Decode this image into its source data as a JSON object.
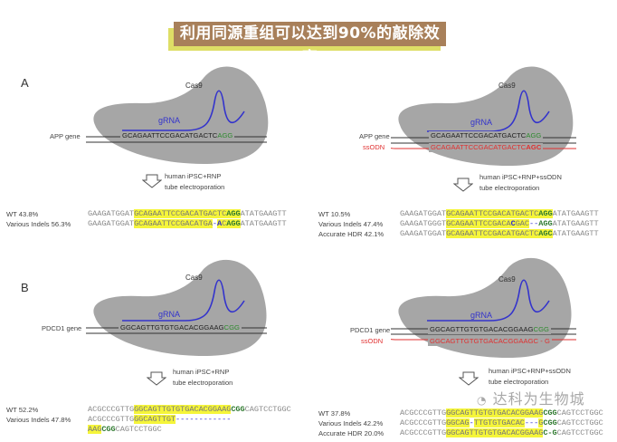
{
  "title": "利用同源重组可以达到90%的敲除效率",
  "watermark": "达科为生物城",
  "colors": {
    "title_bg": "#a8805a",
    "title_shadow": "#dede66",
    "cas9": "#a6a6a6",
    "grna": "#3333cc",
    "pam": "#2f8a2f",
    "ssodn": "#e03030",
    "highlight": "#f5f53a"
  },
  "panels": {
    "A_left": {
      "letter": "A",
      "cas9": "Cas9",
      "grna": "gRNA",
      "gene_label": "APP gene",
      "gene_seq": "GCAGAATTCCGACATGACTC",
      "gene_pam": "AGG",
      "condition": [
        "human iPSC+RNP",
        "tube electroporation"
      ],
      "rows": [
        {
          "label": "WT 43.8%",
          "segments": [
            {
              "t": "GAAGATGGAT",
              "s": "plain"
            },
            {
              "t": "GCAGAATTCCGACATGACTC",
              "s": "hl"
            },
            {
              "t": "AGG",
              "s": "pamhl"
            },
            {
              "t": "ATATGAAGTT",
              "s": "plain"
            }
          ]
        },
        {
          "label": "Various Indels 56.3%",
          "segments": [
            {
              "t": "GAAGATGGAT",
              "s": "plain"
            },
            {
              "t": "GCAGAATTCCGACATGA",
              "s": "hl"
            },
            {
              "t": "-",
              "s": "delw"
            },
            {
              "t": "A",
              "s": "inshl"
            },
            {
              "t": "C",
              "s": "hl"
            },
            {
              "t": "AGG",
              "s": "pamhl"
            },
            {
              "t": "ATATGAAGTT",
              "s": "plain"
            }
          ]
        }
      ]
    },
    "A_right": {
      "cas9": "Cas9",
      "grna": "gRNA",
      "gene_label": "APP gene",
      "ssodn_label": "ssODN",
      "gene_seq": "GCAGAATTCCGACATGACTC",
      "gene_pam": "AGG",
      "ssodn_seq": "GCAGAATTCCGACATGACTC",
      "ssodn_pam": "AGC",
      "condition": [
        "human iPSC+RNP+ssODN",
        "tube electroporation"
      ],
      "rows": [
        {
          "label": "WT 10.5%",
          "segments": [
            {
              "t": "GAAGATGGAT",
              "s": "plain"
            },
            {
              "t": "GCAGAATTCCGACATGACTC",
              "s": "hl"
            },
            {
              "t": "AGG",
              "s": "pamhl"
            },
            {
              "t": "ATATGAAGTT",
              "s": "plain"
            }
          ]
        },
        {
          "label": "Various Indels 47.4%",
          "segments": [
            {
              "t": "GAAGATGGGT",
              "s": "plain"
            },
            {
              "t": "GCAGAATTCCGACA",
              "s": "hl"
            },
            {
              "t": "C",
              "s": "inshl"
            },
            {
              "t": "GAC",
              "s": "hl"
            },
            {
              "t": "--",
              "s": "del"
            },
            {
              "t": "AGG",
              "s": "pam"
            },
            {
              "t": "ATATGAAGTT",
              "s": "plain"
            }
          ]
        },
        {
          "label": "Accurate HDR 42.1%",
          "segments": [
            {
              "t": "GAAGATGGAT",
              "s": "plain"
            },
            {
              "t": "GCAGAATTCCGACATGACTC",
              "s": "hl"
            },
            {
              "t": "AGC",
              "s": "pamhl"
            },
            {
              "t": "ATATGAAGTT",
              "s": "plain"
            }
          ]
        }
      ]
    },
    "B_left": {
      "letter": "B",
      "cas9": "Cas9",
      "grna": "gRNA",
      "gene_label": "PDCD1 gene",
      "gene_seq": "GGCAGTTGTGTGACACGGAAG",
      "gene_pam": "CGG",
      "condition": [
        "human iPSC+RNP",
        "tube electroporation"
      ],
      "rows": [
        {
          "label": "WT 52.2%",
          "segments": [
            {
              "t": "ACGCCCGTTG",
              "s": "plain"
            },
            {
              "t": "GGCAGTTGTGTGACACGGAAG",
              "s": "hl"
            },
            {
              "t": "CGG",
              "s": "pam"
            },
            {
              "t": "CAGTCCTGGC",
              "s": "plain"
            }
          ]
        },
        {
          "label": "Various Indels 47.8%",
          "segments": [
            {
              "t": "ACGCCCGTTG",
              "s": "plain"
            },
            {
              "t": "GGCAGTTGT",
              "s": "hl"
            },
            {
              "t": "------------",
              "s": "del"
            },
            {
              "t": "AAG",
              "s": "hl"
            },
            {
              "t": "CGG",
              "s": "pam"
            },
            {
              "t": "CAGTCCTGGC",
              "s": "plain"
            }
          ]
        }
      ]
    },
    "B_right": {
      "cas9": "Cas9",
      "grna": "gRNA",
      "gene_label": "PDCD1 gene",
      "ssodn_label": "ssODN",
      "gene_seq": "GGCAGTTGTGTGACACGGAAG",
      "gene_pam": "CGG",
      "ssodn_seq": "GGCAGTTGTGTGACACGGAAGC - G",
      "ssodn_pam": "",
      "condition": [
        "human iPSC+RNP+ssODN",
        "tube electroporation"
      ],
      "rows": [
        {
          "label": "WT 37.8%",
          "segments": [
            {
              "t": "ACGCCCGTTG",
              "s": "plain"
            },
            {
              "t": "GGCAGTTGTGTGACACGGAAG",
              "s": "hl"
            },
            {
              "t": "CGG",
              "s": "pam"
            },
            {
              "t": "CAGTCCTGGC",
              "s": "plain"
            }
          ]
        },
        {
          "label": "Various Indels 42.2%",
          "segments": [
            {
              "t": "ACGCCCGTTG",
              "s": "plain"
            },
            {
              "t": "GGCAG",
              "s": "hl"
            },
            {
              "t": "-",
              "s": "delw"
            },
            {
              "t": "TTGTGTGACAC",
              "s": "hl"
            },
            {
              "t": "---",
              "s": "delw"
            },
            {
              "t": "G",
              "s": "hl"
            },
            {
              "t": "CGG",
              "s": "pam"
            },
            {
              "t": "CAGTCCTGGC",
              "s": "plain"
            }
          ]
        },
        {
          "label": "Accurate HDR 20.0%",
          "segments": [
            {
              "t": "ACGCCCGTTG",
              "s": "plain"
            },
            {
              "t": "GGCAGTTGTGTGACACGGAAG",
              "s": "hl"
            },
            {
              "t": "C-G",
              "s": "pam"
            },
            {
              "t": "CAGTCCTGGC",
              "s": "plain"
            }
          ]
        }
      ]
    }
  }
}
